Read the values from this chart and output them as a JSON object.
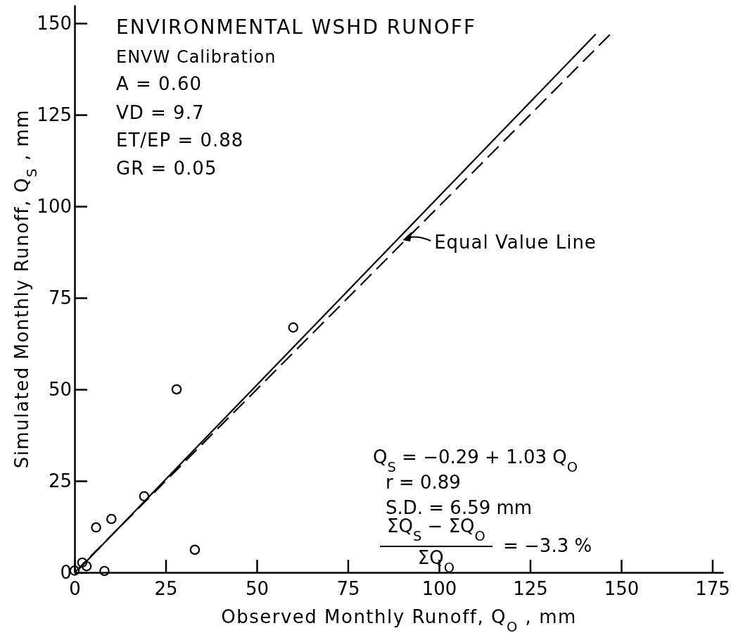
{
  "chart_data": {
    "type": "scatter",
    "title": "ENVIRONMENTAL WSHD RUNOFF",
    "subtitle": "ENVW Calibration",
    "xlabel": "Observed Monthly Runoff, Q$_{O}$ , mm",
    "ylabel": "Simulated Monthly Runoff, Q$_{S}$ , mm",
    "xlim": [
      0,
      178
    ],
    "ylim": [
      0,
      155
    ],
    "xticks": [
      0,
      25,
      50,
      75,
      100,
      125,
      150,
      175
    ],
    "yticks": [
      0,
      25,
      50,
      75,
      100,
      125,
      150
    ],
    "grid": false,
    "series": [
      {
        "color": "#000000",
        "marker": "circle",
        "x": [
          0,
          2.1,
          3.3,
          8.2,
          5.9,
          10.1,
          19.1,
          33,
          28,
          60
        ],
        "values": [
          0.5,
          2.7,
          1.7,
          0.4,
          12.3,
          14.6,
          20.8,
          6.2,
          50,
          66.9
        ]
      },
      {
        "type": "line",
        "color": "#000000",
        "line_style": "solid",
        "x": [
          1,
          143
        ],
        "values": [
          0.7,
          147
        ]
      },
      {
        "type": "line",
        "color": "#000000",
        "line_style": "dashed",
        "x": [
          0,
          147
        ],
        "values": [
          0,
          147
        ]
      }
    ],
    "annotations": [
      "A = 0.60",
      "VD = 9.7",
      "ET/EP = 0.88",
      "GR = 0.05",
      {
        "text": "Equal Value Line",
        "x": 90,
        "y": 90
      },
      "Q$_{S}$ = −0.29 + 1.03 Q$_{O}$",
      "r = 0.89",
      "S.D. = 6.59 mm",
      "ΣQ$_{S}$ − ΣQ$_{O}$",
      "ΣQ$_{O}$",
      "= −3.3 %"
    ]
  }
}
